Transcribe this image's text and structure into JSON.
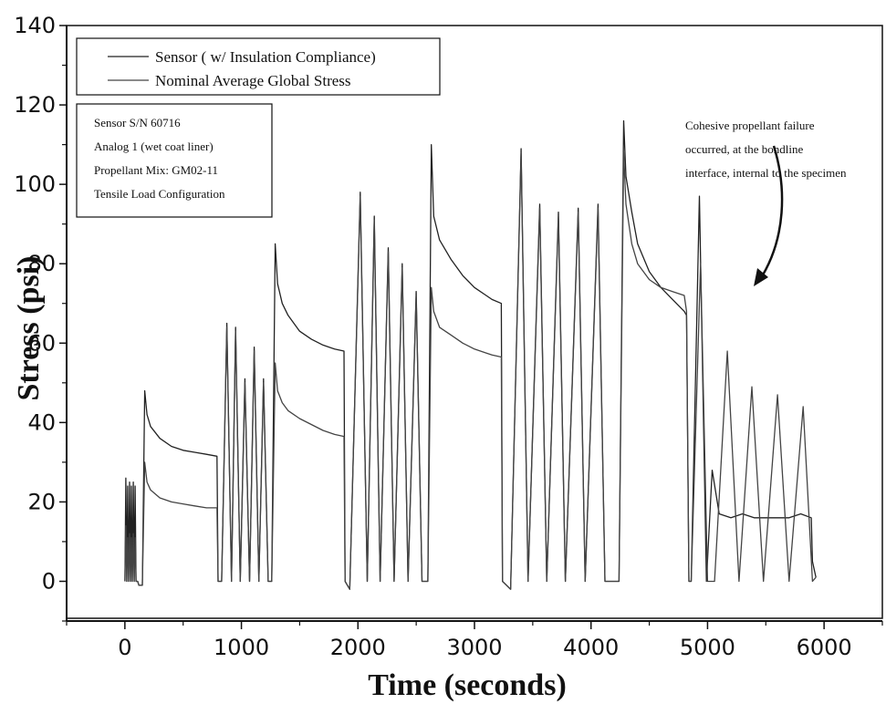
{
  "chart_data": {
    "type": "line",
    "xlabel": "Time (seconds)",
    "ylabel": "Stress (psi)",
    "xlim": [
      -500,
      6500
    ],
    "ylim": [
      -10,
      140
    ],
    "x_ticks": [
      0,
      1000,
      2000,
      3000,
      4000,
      5000,
      6000
    ],
    "x_tick_labels": [
      "0",
      "1000",
      "2000",
      "3000",
      "4000",
      "5000",
      "6000"
    ],
    "y_ticks": [
      0,
      20,
      40,
      60,
      80,
      100,
      120,
      140
    ],
    "y_tick_labels": [
      "0",
      "20",
      "40",
      "60",
      "80",
      "100",
      "120",
      "140"
    ],
    "grid": false,
    "legend_position": "top-left",
    "series": [
      {
        "name": "Sensor ( w/ Insulation Compliance)",
        "color": "#222222",
        "points": [
          [
            0,
            0
          ],
          [
            8,
            26
          ],
          [
            16,
            0
          ],
          [
            24,
            24
          ],
          [
            32,
            0
          ],
          [
            40,
            25
          ],
          [
            48,
            0
          ],
          [
            56,
            24
          ],
          [
            64,
            0
          ],
          [
            72,
            25
          ],
          [
            80,
            0
          ],
          [
            88,
            24
          ],
          [
            96,
            0
          ],
          [
            110,
            0
          ],
          [
            120,
            -1
          ],
          [
            150,
            -1
          ],
          [
            170,
            48
          ],
          [
            190,
            42
          ],
          [
            220,
            39
          ],
          [
            300,
            36
          ],
          [
            400,
            34
          ],
          [
            500,
            33
          ],
          [
            600,
            32.5
          ],
          [
            700,
            32
          ],
          [
            790,
            31.5
          ],
          [
            800,
            0
          ],
          [
            830,
            0
          ],
          [
            875,
            65
          ],
          [
            915,
            0
          ],
          [
            950,
            64
          ],
          [
            990,
            0
          ],
          [
            1030,
            51
          ],
          [
            1070,
            0
          ],
          [
            1110,
            59
          ],
          [
            1150,
            0
          ],
          [
            1190,
            51
          ],
          [
            1230,
            0
          ],
          [
            1260,
            0
          ],
          [
            1290,
            85
          ],
          [
            1310,
            75
          ],
          [
            1350,
            70
          ],
          [
            1400,
            67
          ],
          [
            1500,
            63
          ],
          [
            1600,
            61
          ],
          [
            1700,
            59.5
          ],
          [
            1800,
            58.5
          ],
          [
            1880,
            58
          ],
          [
            1890,
            0
          ],
          [
            1930,
            -2
          ],
          [
            2020,
            98
          ],
          [
            2080,
            0
          ],
          [
            2140,
            92
          ],
          [
            2190,
            0
          ],
          [
            2260,
            84
          ],
          [
            2310,
            0
          ],
          [
            2380,
            80
          ],
          [
            2430,
            0
          ],
          [
            2500,
            73
          ],
          [
            2550,
            0
          ],
          [
            2600,
            0
          ],
          [
            2630,
            110
          ],
          [
            2650,
            92
          ],
          [
            2700,
            86
          ],
          [
            2800,
            81
          ],
          [
            2900,
            77
          ],
          [
            3000,
            74
          ],
          [
            3100,
            72
          ],
          [
            3150,
            71
          ],
          [
            3230,
            70
          ],
          [
            3240,
            0
          ],
          [
            3310,
            -2
          ],
          [
            3400,
            109
          ],
          [
            3460,
            0
          ],
          [
            3560,
            95
          ],
          [
            3620,
            0
          ],
          [
            3720,
            93
          ],
          [
            3780,
            0
          ],
          [
            3890,
            94
          ],
          [
            3950,
            0
          ],
          [
            4060,
            95
          ],
          [
            4120,
            0
          ],
          [
            4240,
            0
          ],
          [
            4280,
            116
          ],
          [
            4300,
            102
          ],
          [
            4350,
            93
          ],
          [
            4400,
            85
          ],
          [
            4500,
            78
          ],
          [
            4600,
            74
          ],
          [
            4700,
            71
          ],
          [
            4800,
            68
          ],
          [
            4820,
            67
          ],
          [
            4840,
            0
          ],
          [
            4860,
            0
          ],
          [
            4930,
            97
          ],
          [
            4990,
            0
          ],
          [
            5040,
            28
          ],
          [
            5100,
            17
          ],
          [
            5200,
            16
          ],
          [
            5300,
            17
          ],
          [
            5400,
            16
          ],
          [
            5500,
            16
          ],
          [
            5600,
            16
          ],
          [
            5700,
            16
          ],
          [
            5800,
            17
          ],
          [
            5890,
            16
          ],
          [
            5900,
            5
          ],
          [
            5930,
            1
          ]
        ]
      },
      {
        "name": "Nominal Average Global Stress",
        "color": "#444444",
        "points": [
          [
            0,
            0
          ],
          [
            8,
            14
          ],
          [
            16,
            0
          ],
          [
            24,
            11
          ],
          [
            32,
            0
          ],
          [
            40,
            12
          ],
          [
            48,
            0
          ],
          [
            56,
            11
          ],
          [
            64,
            0
          ],
          [
            72,
            12
          ],
          [
            80,
            0
          ],
          [
            88,
            11
          ],
          [
            96,
            0
          ],
          [
            110,
            0
          ],
          [
            120,
            -1
          ],
          [
            150,
            -1
          ],
          [
            170,
            30
          ],
          [
            190,
            25
          ],
          [
            220,
            23
          ],
          [
            300,
            21
          ],
          [
            400,
            20
          ],
          [
            500,
            19.5
          ],
          [
            600,
            19
          ],
          [
            700,
            18.5
          ],
          [
            790,
            18.5
          ],
          [
            800,
            0
          ],
          [
            830,
            0
          ],
          [
            875,
            64
          ],
          [
            915,
            0
          ],
          [
            950,
            63
          ],
          [
            990,
            0
          ],
          [
            1030,
            50
          ],
          [
            1070,
            0
          ],
          [
            1110,
            58
          ],
          [
            1150,
            0
          ],
          [
            1190,
            50
          ],
          [
            1230,
            0
          ],
          [
            1260,
            0
          ],
          [
            1290,
            55
          ],
          [
            1310,
            48
          ],
          [
            1350,
            45
          ],
          [
            1400,
            43
          ],
          [
            1500,
            41
          ],
          [
            1600,
            39.5
          ],
          [
            1700,
            38
          ],
          [
            1800,
            37
          ],
          [
            1880,
            36.5
          ],
          [
            1890,
            0
          ],
          [
            1930,
            -2
          ],
          [
            2020,
            97
          ],
          [
            2080,
            0
          ],
          [
            2140,
            91
          ],
          [
            2190,
            0
          ],
          [
            2260,
            83
          ],
          [
            2310,
            0
          ],
          [
            2380,
            79
          ],
          [
            2430,
            0
          ],
          [
            2500,
            72
          ],
          [
            2550,
            0
          ],
          [
            2600,
            0
          ],
          [
            2630,
            74
          ],
          [
            2650,
            68
          ],
          [
            2700,
            64
          ],
          [
            2800,
            62
          ],
          [
            2900,
            60
          ],
          [
            3000,
            58.5
          ],
          [
            3100,
            57.5
          ],
          [
            3150,
            57
          ],
          [
            3230,
            56.5
          ],
          [
            3240,
            0
          ],
          [
            3310,
            -2
          ],
          [
            3400,
            108
          ],
          [
            3460,
            0
          ],
          [
            3560,
            94
          ],
          [
            3620,
            0
          ],
          [
            3720,
            92
          ],
          [
            3780,
            0
          ],
          [
            3890,
            93
          ],
          [
            3950,
            0
          ],
          [
            4060,
            94
          ],
          [
            4120,
            0
          ],
          [
            4240,
            0
          ],
          [
            4280,
            108
          ],
          [
            4300,
            95
          ],
          [
            4350,
            85
          ],
          [
            4400,
            80
          ],
          [
            4500,
            76
          ],
          [
            4600,
            74
          ],
          [
            4700,
            73
          ],
          [
            4800,
            72
          ],
          [
            4820,
            68
          ],
          [
            4840,
            0
          ],
          [
            4860,
            0
          ],
          [
            4940,
            80
          ],
          [
            5000,
            0
          ],
          [
            5060,
            0
          ],
          [
            5170,
            58
          ],
          [
            5270,
            0
          ],
          [
            5380,
            49
          ],
          [
            5480,
            0
          ],
          [
            5600,
            47
          ],
          [
            5700,
            0
          ],
          [
            5820,
            44
          ],
          [
            5900,
            0
          ],
          [
            5930,
            1
          ]
        ]
      }
    ]
  },
  "legend": {
    "items": [
      {
        "label": "Sensor ( w/ Insulation Compliance)"
      },
      {
        "label": "Nominal Average Global Stress"
      }
    ]
  },
  "info_box": {
    "lines": [
      "Sensor S/N 60716",
      "Analog 1 (wet coat liner)",
      "Propellant Mix: GM02-11",
      "Tensile Load Configuration"
    ]
  },
  "annotation": {
    "lines": [
      "Cohesive propellant failure",
      "occurred, at the bondline",
      "interface, internal to the specimen"
    ]
  }
}
